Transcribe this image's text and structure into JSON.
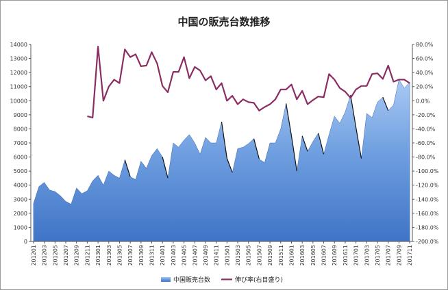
{
  "chart_data": {
    "type": "area+line",
    "title": "中国の販売台数推移",
    "x": [
      "201201",
      "201202",
      "201203",
      "201204",
      "201205",
      "201206",
      "201207",
      "201208",
      "201209",
      "201210",
      "201211",
      "201212",
      "201301",
      "201302",
      "201303",
      "201304",
      "201305",
      "201306",
      "201307",
      "201308",
      "201309",
      "201310",
      "201311",
      "201312",
      "201401",
      "201402",
      "201403",
      "201404",
      "201405",
      "201406",
      "201407",
      "201408",
      "201409",
      "201410",
      "201411",
      "201412",
      "201501",
      "201502",
      "201503",
      "201504",
      "201505",
      "201506",
      "201507",
      "201508",
      "201509",
      "201510",
      "201511",
      "201512",
      "201601",
      "201602",
      "201603",
      "201604",
      "201605",
      "201606",
      "201607",
      "201608",
      "201609",
      "201610",
      "201611",
      "201612",
      "201701",
      "201702",
      "201703",
      "201704",
      "201705",
      "201706",
      "201707",
      "201708",
      "201709",
      "201710",
      "201711"
    ],
    "x_tick_labels": [
      "201201",
      "201203",
      "201205",
      "201207",
      "201209",
      "201211",
      "201301",
      "201303",
      "201305",
      "201307",
      "201309",
      "201311",
      "201401",
      "201403",
      "201405",
      "201407",
      "201409",
      "201411",
      "201501",
      "201503",
      "201505",
      "201507",
      "201509",
      "201511",
      "201601",
      "201603",
      "201605",
      "201607",
      "201609",
      "201611",
      "201701",
      "201703",
      "201705",
      "201707",
      "201709",
      "201711"
    ],
    "y_left": {
      "min": 0,
      "max": 14000,
      "step": 1000,
      "ticks": [
        "0",
        "1000",
        "2000",
        "3000",
        "4000",
        "5000",
        "6000",
        "7000",
        "8000",
        "9000",
        "10000",
        "11000",
        "12000",
        "13000",
        "14000"
      ]
    },
    "y_right": {
      "min": -200,
      "max": 80,
      "step": 20,
      "ticks": [
        "-200.0%",
        "-180.0%",
        "-160.0%",
        "-140.0%",
        "-120.0%",
        "-100.0%",
        "-80.0%",
        "-60.0%",
        "-40.0%",
        "-20.0%",
        "0.0%",
        "20.0%",
        "40.0%",
        "60.0%",
        "80.0%"
      ]
    },
    "series": [
      {
        "name": "中国販売台数",
        "type": "area",
        "axis": "left",
        "color": "#5b8fd6",
        "values": [
          2700,
          3900,
          4200,
          3650,
          3550,
          3250,
          2850,
          2650,
          3800,
          3400,
          3600,
          4300,
          4700,
          4000,
          5000,
          4700,
          4500,
          5800,
          4600,
          4400,
          5700,
          5200,
          6100,
          6600,
          6000,
          4500,
          7000,
          6700,
          7200,
          7600,
          7000,
          6200,
          7400,
          7000,
          7000,
          8500,
          5900,
          4900,
          6600,
          6700,
          6950,
          7300,
          5850,
          5600,
          7000,
          7000,
          8000,
          9800,
          7500,
          5000,
          7500,
          6400,
          7100,
          7700,
          6200,
          7600,
          8900,
          8400,
          9200,
          10400,
          8100,
          5900,
          9100,
          8800,
          9900,
          10250,
          9300,
          9700,
          11500,
          10900,
          11300
        ]
      },
      {
        "name": "伸び率(右目盛り)",
        "type": "line",
        "axis": "right",
        "color": "#8b2d63",
        "values": [
          null,
          null,
          null,
          null,
          null,
          null,
          null,
          null,
          null,
          null,
          -22,
          -24,
          77,
          0,
          20,
          30,
          25,
          73,
          62,
          66,
          49,
          50,
          69,
          53,
          21,
          12,
          41,
          41,
          62,
          32,
          48,
          43,
          29,
          35,
          16,
          25,
          0,
          7,
          -5,
          2,
          -2,
          -3,
          -14,
          -9,
          -5,
          2,
          16,
          16,
          23,
          2,
          14,
          -5,
          1,
          6,
          5,
          38,
          30,
          18,
          13,
          4,
          16,
          21,
          21,
          38,
          39,
          31,
          50,
          27,
          30,
          30,
          25
        ]
      }
    ],
    "legend_position": "bottom",
    "grid": false
  }
}
